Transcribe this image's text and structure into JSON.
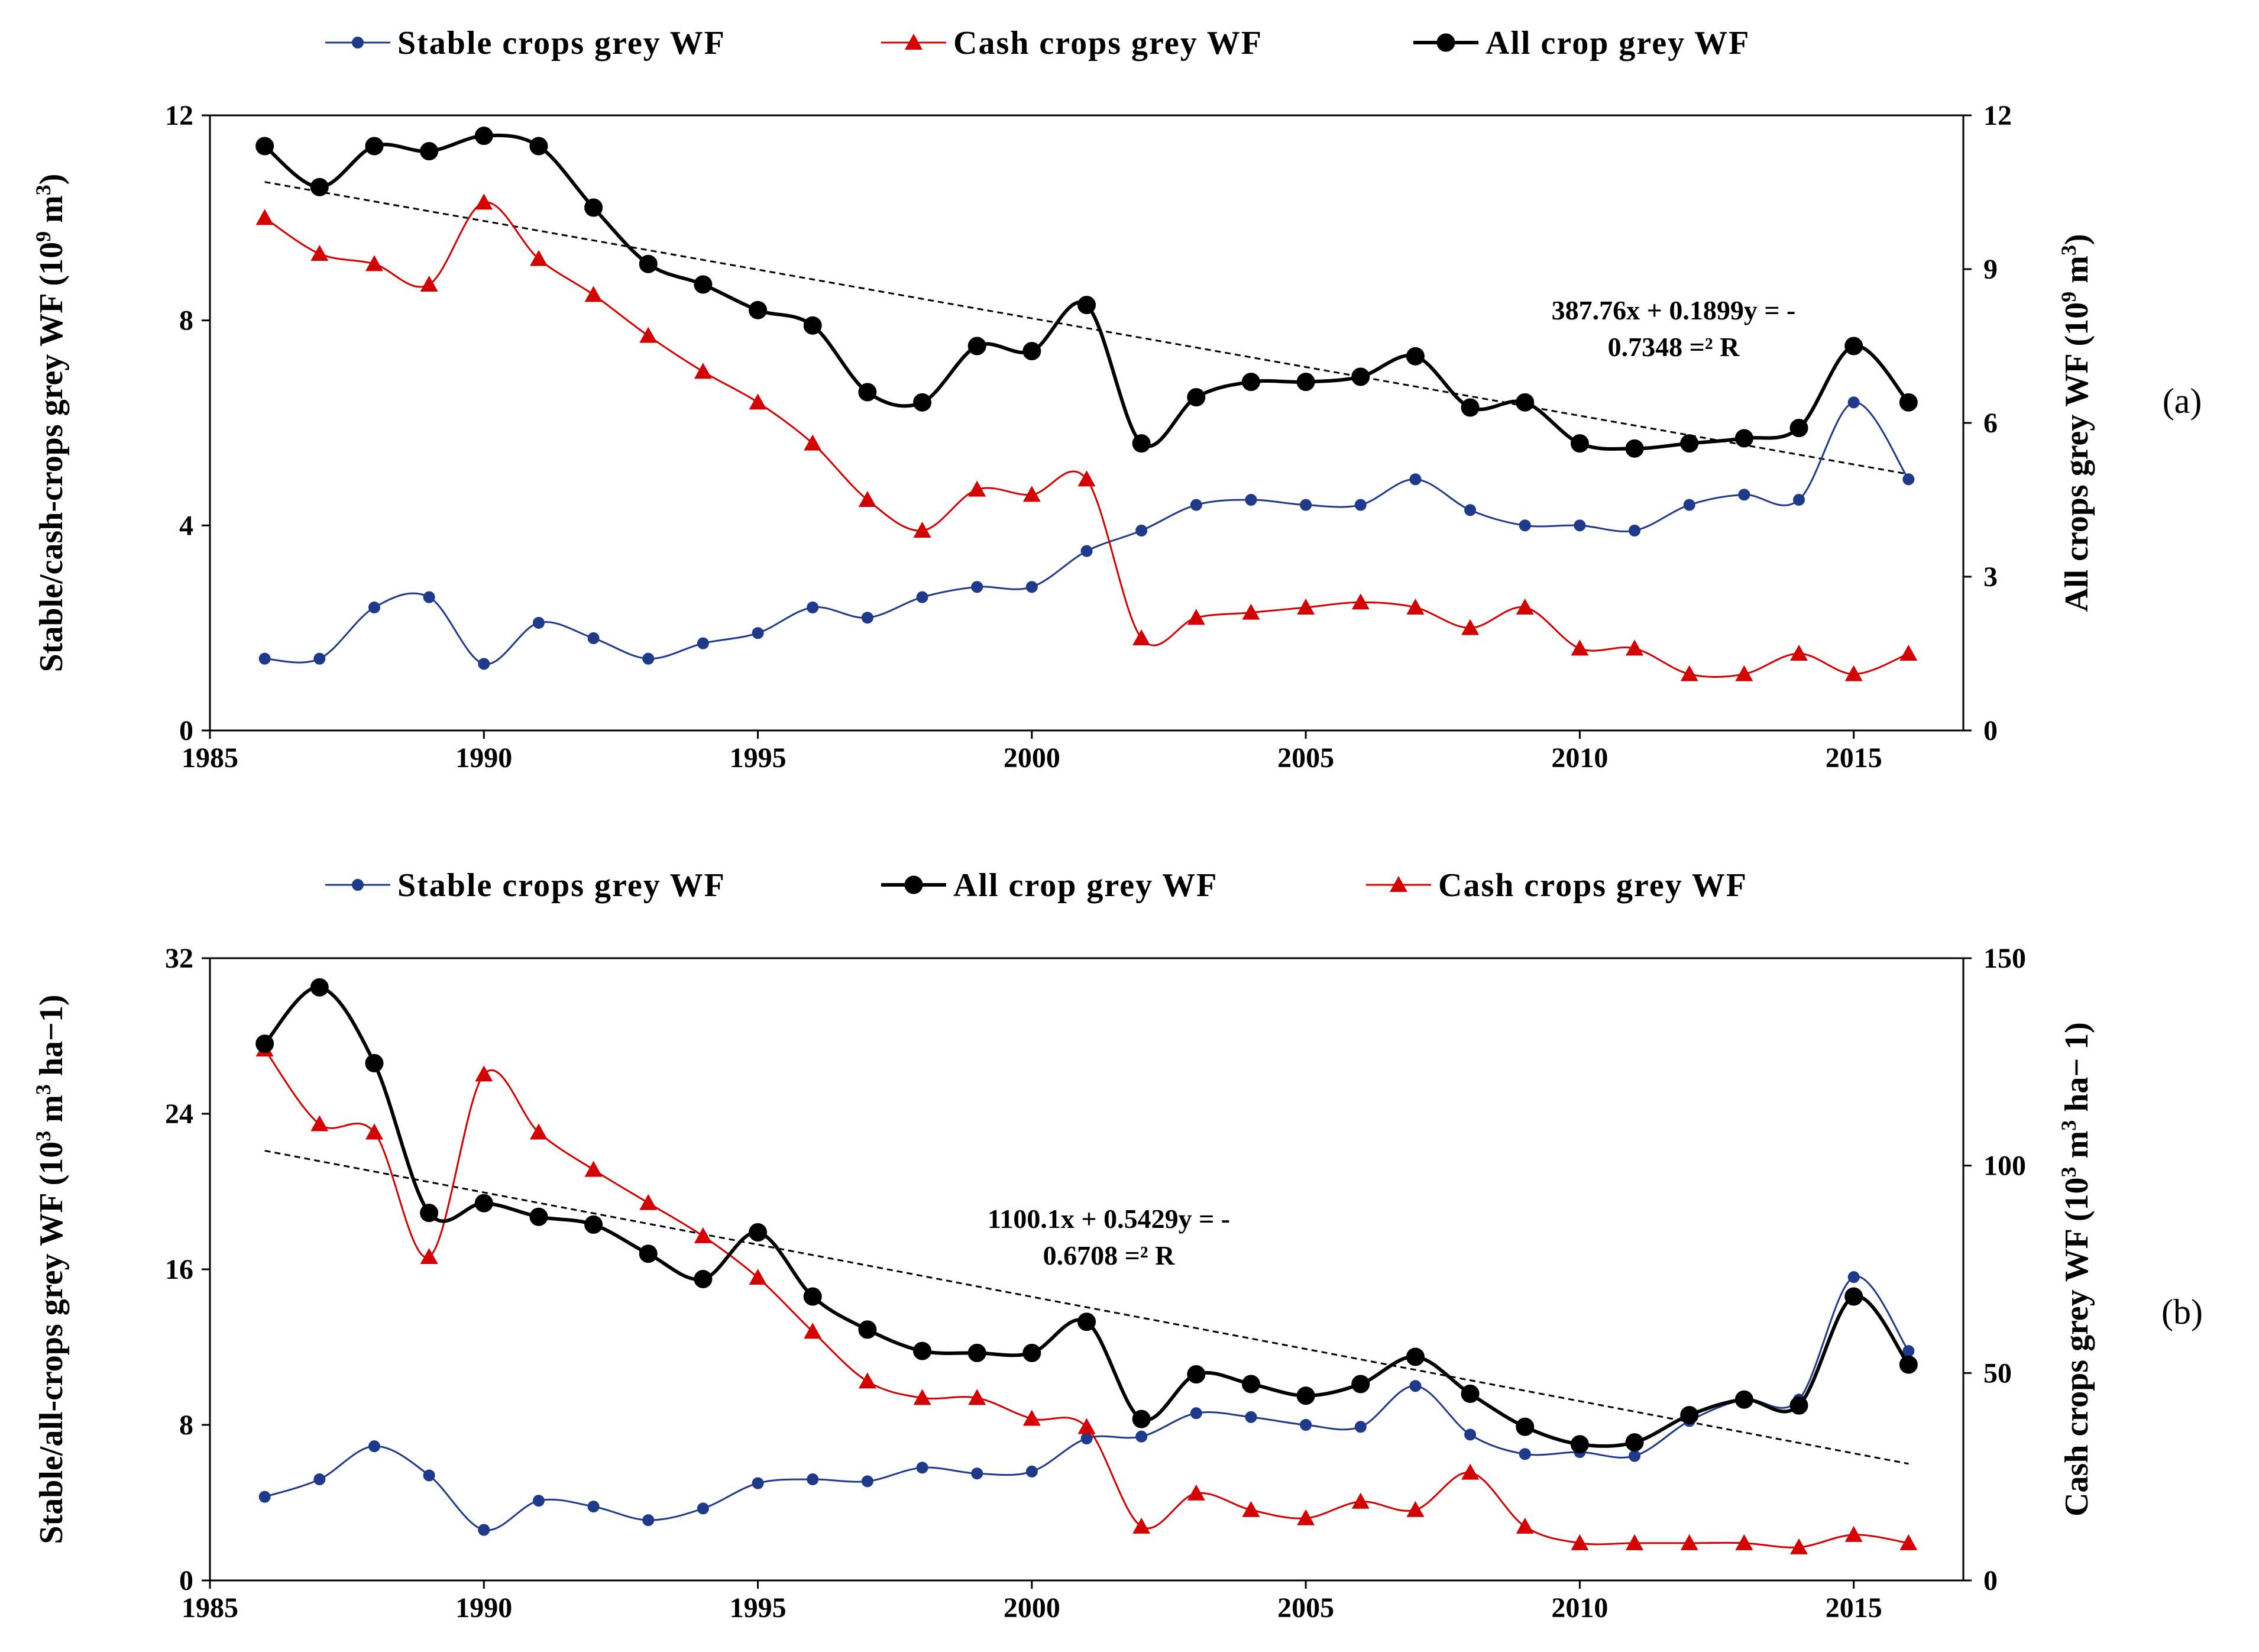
{
  "colors": {
    "stable": "#1f3a8a",
    "cash": "#d40000",
    "all": "#000000",
    "trend": "#000000"
  },
  "chart_data": [
    {
      "type": "line",
      "panel_label": "(a)",
      "legend": [
        "Stable crops grey WF",
        "Cash crops grey WF",
        "All crop grey WF"
      ],
      "xlabel": "",
      "ylabel_left": "Stable/cash-crops  grey WF (10",
      "ylabel_left_sup": "9",
      "ylabel_left_unit": " m",
      "ylabel_left_unit_sup": "3",
      "ylabel_left_close": ")",
      "ylabel_right": "All crops  grey WF (10",
      "ylabel_right_sup": "9",
      "ylabel_right_unit": " m",
      "ylabel_right_unit_sup": "3",
      "ylabel_right_close": ")",
      "xlim": [
        1985,
        2017
      ],
      "xticks": [
        1985,
        1990,
        1995,
        2000,
        2005,
        2010,
        2015
      ],
      "xtick_labels": [
        "1985",
        "1990",
        "1995",
        "2000",
        "2005",
        "2010",
        "2015"
      ],
      "ylim_left": [
        0,
        12
      ],
      "yticks_left": [
        0,
        4,
        8,
        12
      ],
      "ytick_labels_left": [
        "0",
        "4",
        "8",
        "12"
      ],
      "ylim_right": [
        0,
        12
      ],
      "yticks_right": [
        0,
        3,
        6,
        9,
        12
      ],
      "ytick_labels_right": [
        "0",
        "3",
        "6",
        "9",
        "12"
      ],
      "x": [
        1986,
        1987,
        1988,
        1989,
        1990,
        1991,
        1992,
        1993,
        1994,
        1995,
        1996,
        1997,
        1998,
        1999,
        2000,
        2001,
        2002,
        2003,
        2004,
        2005,
        2006,
        2007,
        2008,
        2009,
        2010,
        2011,
        2012,
        2013,
        2014,
        2015,
        2016
      ],
      "series": [
        {
          "name": "Stable crops grey WF",
          "axis": "left",
          "marker": "dot",
          "color_key": "stable",
          "values": [
            1.4,
            1.4,
            2.4,
            2.6,
            1.3,
            2.1,
            1.8,
            1.4,
            1.7,
            1.9,
            2.4,
            2.2,
            2.6,
            2.8,
            2.8,
            3.5,
            3.9,
            4.4,
            4.5,
            4.4,
            4.4,
            4.9,
            4.3,
            4.0,
            4.0,
            3.9,
            4.4,
            4.6,
            4.5,
            6.4,
            4.9
          ]
        },
        {
          "name": "Cash crops grey WF",
          "axis": "left",
          "marker": "triangle",
          "color_key": "cash",
          "values": [
            10.0,
            9.3,
            9.1,
            8.7,
            10.3,
            9.2,
            8.5,
            7.7,
            7.0,
            6.4,
            5.6,
            4.5,
            3.9,
            4.7,
            4.6,
            4.9,
            1.8,
            2.2,
            2.3,
            2.4,
            2.5,
            2.4,
            2.0,
            2.4,
            1.6,
            1.6,
            1.1,
            1.1,
            1.5,
            1.1,
            1.5
          ]
        },
        {
          "name": "All crop grey WF",
          "axis": "right",
          "marker": "circle",
          "color_key": "all",
          "values": [
            11.4,
            10.6,
            11.4,
            11.3,
            11.6,
            11.4,
            10.2,
            9.1,
            8.7,
            8.2,
            7.9,
            6.6,
            6.4,
            7.5,
            7.4,
            8.3,
            5.6,
            6.5,
            6.8,
            6.8,
            6.9,
            7.3,
            6.3,
            6.4,
            5.6,
            5.5,
            5.6,
            5.7,
            5.9,
            7.5,
            6.4
          ]
        }
      ],
      "trendline": {
        "axis": "right",
        "x": [
          1986,
          2016
        ],
        "y": [
          10.7,
          5.0
        ]
      },
      "equation_line1": "387.76x + 0.1899y = -",
      "equation_line2": "0.7348 =² R"
    },
    {
      "type": "line",
      "panel_label": "(b)",
      "legend": [
        "Stable crops grey WF",
        "All crop grey WF",
        "Cash crops grey WF"
      ],
      "xlabel": "",
      "ylabel_left": "Stable/all-crops  grey WF (10",
      "ylabel_left_sup": "3",
      "ylabel_left_unit": " m",
      "ylabel_left_unit_sup": "3",
      "ylabel_left_close": " ha−1)",
      "ylabel_right": "Cash crops grey WF (10",
      "ylabel_right_sup": "3",
      "ylabel_right_unit": " m",
      "ylabel_right_unit_sup": "3",
      "ylabel_right_close": " ha− 1)",
      "xlim": [
        1985,
        2017
      ],
      "xticks": [
        1985,
        1990,
        1995,
        2000,
        2005,
        2010,
        2015
      ],
      "xtick_labels": [
        "1985",
        "1990",
        "1995",
        "2000",
        "2005",
        "2010",
        "2015"
      ],
      "ylim_left": [
        0,
        32
      ],
      "yticks_left": [
        0,
        8,
        16,
        24,
        32
      ],
      "ytick_labels_left": [
        "0",
        "8",
        "16",
        "24",
        "32"
      ],
      "ylim_right": [
        0,
        150
      ],
      "yticks_right": [
        0,
        50,
        100,
        150
      ],
      "ytick_labels_right": [
        "0",
        "50",
        "100",
        "150"
      ],
      "x": [
        1986,
        1987,
        1988,
        1989,
        1990,
        1991,
        1992,
        1993,
        1994,
        1995,
        1996,
        1997,
        1998,
        1999,
        2000,
        2001,
        2002,
        2003,
        2004,
        2005,
        2006,
        2007,
        2008,
        2009,
        2010,
        2011,
        2012,
        2013,
        2014,
        2015,
        2016
      ],
      "series": [
        {
          "name": "Stable crops grey WF",
          "axis": "left",
          "marker": "dot",
          "color_key": "stable",
          "values": [
            4.3,
            5.2,
            6.9,
            5.4,
            2.6,
            4.1,
            3.8,
            3.1,
            3.7,
            5.0,
            5.2,
            5.1,
            5.8,
            5.5,
            5.6,
            7.3,
            7.4,
            8.6,
            8.4,
            8.0,
            7.9,
            10.0,
            7.5,
            6.5,
            6.6,
            6.4,
            8.2,
            9.3,
            9.3,
            15.6,
            11.8
          ]
        },
        {
          "name": "All crop grey WF",
          "axis": "left",
          "marker": "circle",
          "color_key": "all",
          "values": [
            27.6,
            30.5,
            26.6,
            18.9,
            19.4,
            18.7,
            18.3,
            16.8,
            15.5,
            17.9,
            14.6,
            12.9,
            11.8,
            11.7,
            11.7,
            13.3,
            8.3,
            10.6,
            10.1,
            9.5,
            10.1,
            11.5,
            9.6,
            7.9,
            7.0,
            7.1,
            8.5,
            9.3,
            9.0,
            14.6,
            11.1
          ]
        },
        {
          "name": "Cash crops grey WF",
          "axis": "right",
          "marker": "triangle",
          "color_key": "cash",
          "values": [
            128,
            110,
            108,
            78,
            122,
            108,
            99,
            91,
            83,
            73,
            60,
            48,
            44,
            44,
            39,
            37,
            13,
            21,
            17,
            15,
            19,
            17,
            26,
            13,
            9,
            9,
            9,
            9,
            8,
            11,
            9
          ]
        }
      ],
      "trendline": {
        "axis": "left",
        "x": [
          1986,
          2016
        ],
        "y": [
          22.1,
          6.0
        ]
      },
      "equation_line1": "1100.1x + 0.5429y = -",
      "equation_line2": "0.6708 =² R"
    }
  ]
}
